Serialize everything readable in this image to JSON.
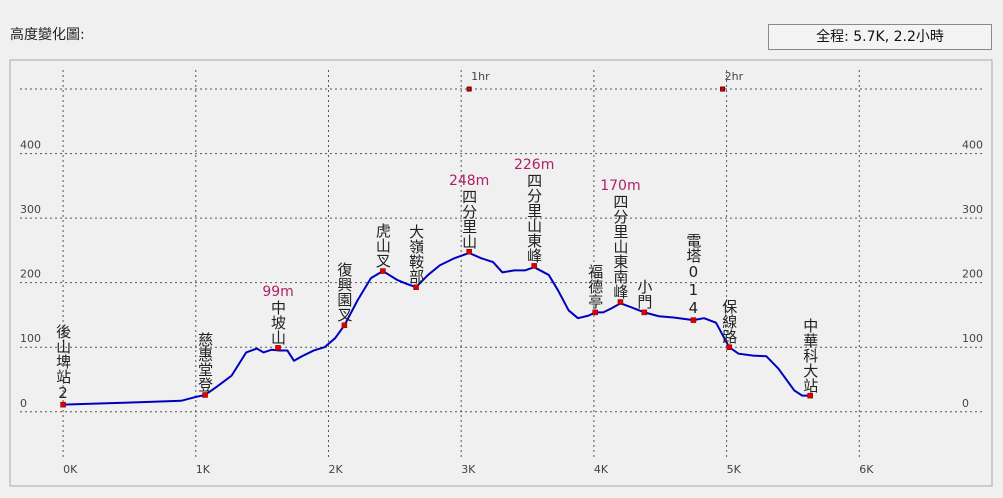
{
  "header": {
    "title": "高度變化圖:",
    "summary": "全程: 5.7K, 2.2小時"
  },
  "chart_data": {
    "type": "line",
    "x": [
      0,
      0.3,
      0.6,
      0.89,
      1.0,
      1.07,
      1.16,
      1.27,
      1.38,
      1.46,
      1.51,
      1.57,
      1.63,
      1.69,
      1.74,
      1.8,
      1.89,
      1.97,
      2.05,
      2.12,
      2.22,
      2.32,
      2.41,
      2.52,
      2.59,
      2.66,
      2.75,
      2.84,
      2.95,
      3.06,
      3.15,
      3.24,
      3.31,
      3.4,
      3.48,
      3.55,
      3.66,
      3.73,
      3.81,
      3.88,
      3.96,
      4.01,
      4.07,
      4.13,
      4.2,
      4.28,
      4.38,
      4.49,
      4.6,
      4.75,
      4.83,
      4.92,
      5.02,
      5.09,
      5.2,
      5.3,
      5.39,
      5.51,
      5.57,
      5.63
    ],
    "series": [
      {
        "color": "#0000c0",
        "values": [
          11,
          13,
          15,
          17,
          23,
          26,
          39,
          56,
          92,
          98,
          92,
          96,
          95,
          95,
          79,
          86,
          95,
          100,
          114,
          134,
          173,
          207,
          218,
          204,
          198,
          193,
          212,
          227,
          238,
          246,
          238,
          232,
          216,
          219,
          219,
          224,
          212,
          188,
          157,
          145,
          149,
          154,
          154,
          160,
          168,
          162,
          154,
          148,
          146,
          142,
          145,
          138,
          100,
          90,
          87,
          86,
          67,
          33,
          25,
          25
        ]
      }
    ],
    "xlim": [
      -0.4,
      7.0
    ],
    "ylim": [
      -115,
      545
    ],
    "xticks": [
      {
        "value": 0,
        "label": "0K"
      },
      {
        "value": 1,
        "label": "1K"
      },
      {
        "value": 2,
        "label": "2K"
      },
      {
        "value": 3,
        "label": "3K"
      },
      {
        "value": 4,
        "label": "4K"
      },
      {
        "value": 5,
        "label": "5K"
      },
      {
        "value": 6,
        "label": "6K"
      }
    ],
    "yticks": [
      0,
      100,
      200,
      300,
      400,
      {
        "value": 500,
        "label": null
      }
    ],
    "grid": true,
    "marker_color": "#e00000",
    "label_color": "#b0206a",
    "time_markers": [
      {
        "label": "1hr",
        "x": 3.06
      },
      {
        "label": "2hr",
        "x": 4.97
      }
    ],
    "waypoints": [
      {
        "name": "後山埤站2",
        "x": 0,
        "elevation": 11
      },
      {
        "name": "慈惠堂登",
        "x": 1.07,
        "elevation": 26
      },
      {
        "name": "中坡山",
        "x": 1.62,
        "elevation": 99,
        "elevation_label": "99m"
      },
      {
        "name": "復興園叉",
        "x": 2.12,
        "elevation": 134
      },
      {
        "name": "虎山叉",
        "x": 2.41,
        "elevation": 218
      },
      {
        "name": "大嶺鞍部",
        "x": 2.66,
        "elevation": 193
      },
      {
        "name": "四分里山",
        "x": 3.06,
        "elevation": 248,
        "elevation_label": "248m"
      },
      {
        "name": "四分里山東峰",
        "x": 3.55,
        "elevation": 226,
        "elevation_label": "226m"
      },
      {
        "name": "福德亭",
        "x": 4.01,
        "elevation": 154
      },
      {
        "name": "四分里山東南峰",
        "x": 4.2,
        "elevation": 170,
        "elevation_label": "170m"
      },
      {
        "name": "小門",
        "x": 4.38,
        "elevation": 154
      },
      {
        "name": "電塔014",
        "x": 4.75,
        "elevation": 142
      },
      {
        "name": "保線路",
        "x": 5.02,
        "elevation": 100
      },
      {
        "name": "中華科大站",
        "x": 5.63,
        "elevation": 25
      }
    ]
  }
}
